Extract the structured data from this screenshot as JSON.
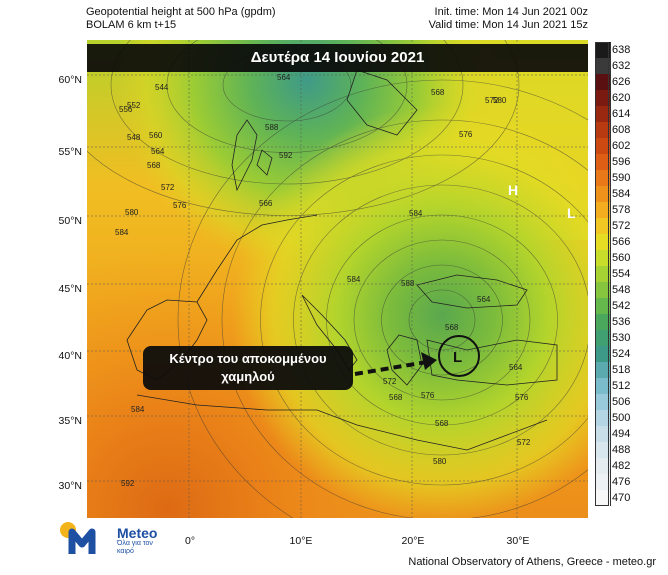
{
  "header": {
    "title_line1": "Geopotential height at 500 hPa (gpdm)",
    "title_line2": "BOLAM 6 km t+15",
    "init_time": "Init. time: Mon 14 Jun 2021 00z",
    "valid_time": "Valid time: Mon 14 Jun 2021 15z"
  },
  "banner": {
    "text": "Δευτέρα 14 Ιουνίου 2021"
  },
  "callout": {
    "text": "Κέντρο του αποκομμένου χαμηλού"
  },
  "lat_labels": [
    "60°N",
    "55°N",
    "50°N",
    "45°N",
    "40°N",
    "35°N",
    "30°N"
  ],
  "lon_labels": [
    "0°",
    "10°E",
    "20°E",
    "30°E"
  ],
  "colorbar": {
    "values": [
      "638",
      "632",
      "626",
      "620",
      "614",
      "608",
      "602",
      "596",
      "590",
      "584",
      "578",
      "572",
      "566",
      "560",
      "554",
      "548",
      "542",
      "536",
      "530",
      "524",
      "518",
      "512",
      "506",
      "500",
      "494",
      "488",
      "482",
      "476",
      "470"
    ],
    "colors": [
      "#1a1a1a",
      "#3a3a3a",
      "#5a1010",
      "#7a1a10",
      "#9a2810",
      "#b83a10",
      "#cc4a12",
      "#dd5e14",
      "#e87818",
      "#ef921c",
      "#f4ad1e",
      "#f1c823",
      "#e6dc24",
      "#c8dc2a",
      "#a6d234",
      "#86c63e",
      "#64b84c",
      "#4aa85c",
      "#40a072",
      "#3e9a88",
      "#5aaab0",
      "#7abccc",
      "#98cadb",
      "#b4d6e4",
      "#c8dfe9",
      "#d8e6ed",
      "#e4ecef",
      "#eef1f3",
      "#f7f7f7"
    ]
  },
  "map": {
    "high_marker": "H",
    "low_marker": "L",
    "contour_labels": [
      "544",
      "552",
      "556",
      "548",
      "560",
      "564",
      "568",
      "572",
      "576",
      "580",
      "584",
      "588",
      "592",
      "566",
      "564",
      "568",
      "572",
      "576",
      "580",
      "584",
      "584",
      "588",
      "564",
      "568",
      "572",
      "576",
      "568",
      "564",
      "568",
      "572",
      "576",
      "580",
      "584",
      "592"
    ]
  },
  "logo": {
    "name": "Meteo",
    "tagline": "Όλα για τον καιρό"
  },
  "footer": {
    "text": "National Observatory of Athens, Greece - meteo.gr"
  }
}
